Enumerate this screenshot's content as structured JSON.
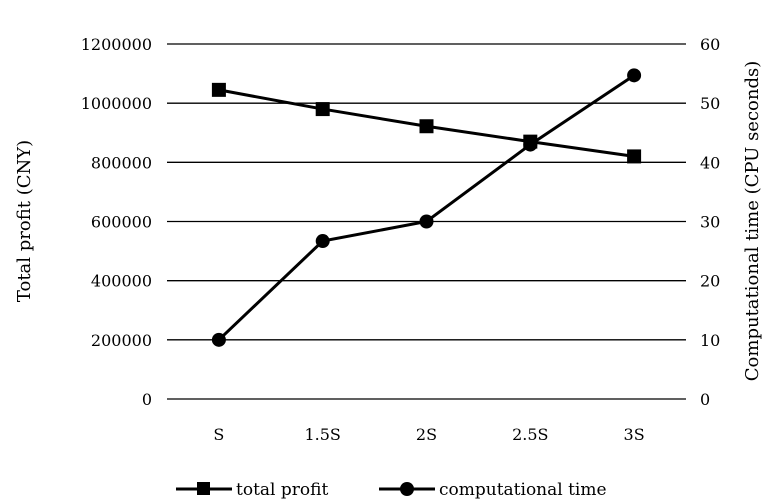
{
  "chart_data": {
    "type": "line",
    "title": "",
    "categories": [
      "S",
      "1.5S",
      "2S",
      "2.5S",
      "3S"
    ],
    "left_axis": {
      "label": "Total profit (CNY)",
      "ylim": [
        0,
        1200000
      ],
      "ticks": [
        0,
        200000,
        400000,
        600000,
        800000,
        1000000,
        1200000
      ],
      "tick_labels": [
        "0",
        "200000",
        "400000",
        "600000",
        "800000",
        "1000000",
        "1200000"
      ]
    },
    "right_axis": {
      "label": "Computational time (CPU seconds)",
      "ylim": [
        0,
        60
      ],
      "ticks": [
        0,
        10,
        20,
        30,
        40,
        50,
        60
      ],
      "tick_labels": [
        "0",
        "10",
        "20",
        "30",
        "40",
        "50",
        "60"
      ]
    },
    "series": [
      {
        "name": "total profit",
        "axis": "left",
        "marker": "square",
        "values": [
          1045000,
          980000,
          922000,
          870000,
          820000
        ]
      },
      {
        "name": "computational time",
        "axis": "right",
        "marker": "circle",
        "values": [
          10,
          26.7,
          30,
          43,
          54.7
        ]
      }
    ],
    "grid": true,
    "legend_position": "bottom",
    "colors": {
      "line": "#000000",
      "grid": "#000000"
    }
  }
}
